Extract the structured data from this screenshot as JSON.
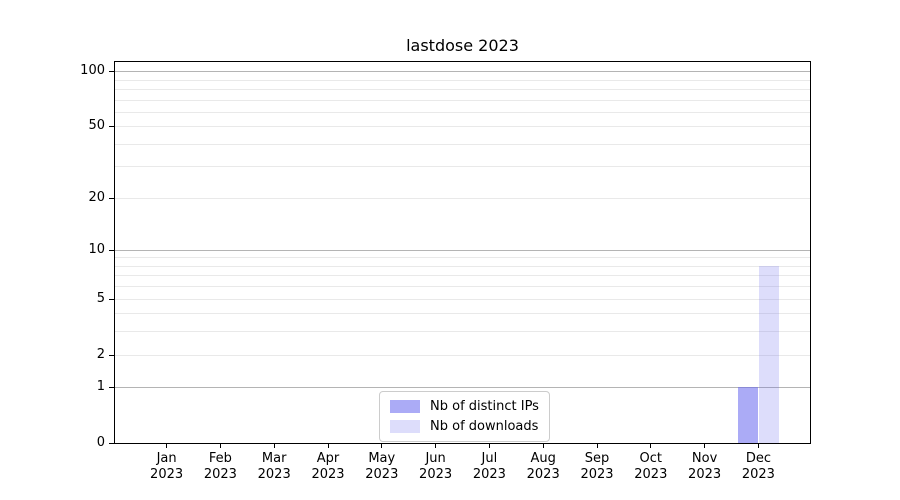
{
  "chart_data": {
    "type": "bar",
    "title": "lastdose 2023",
    "x_year": "2023",
    "x_categories": [
      "Jan",
      "Feb",
      "Mar",
      "Apr",
      "May",
      "Jun",
      "Jul",
      "Aug",
      "Sep",
      "Oct",
      "Nov",
      "Dec"
    ],
    "series": [
      {
        "name": "Nb of distinct IPs",
        "color": "rgba(102,102,238,0.55)",
        "values": [
          0,
          0,
          0,
          0,
          0,
          0,
          0,
          0,
          0,
          0,
          0,
          1
        ]
      },
      {
        "name": "Nb of downloads",
        "color": "rgba(102,102,238,0.22)",
        "values": [
          0,
          0,
          0,
          0,
          0,
          0,
          0,
          0,
          0,
          0,
          0,
          8
        ]
      }
    ],
    "y_scale": "log1p",
    "ylim": [
      0,
      112
    ],
    "y_ticks": [
      0,
      1,
      2,
      5,
      10,
      20,
      50,
      100
    ],
    "y_major_gridlines": [
      1,
      10,
      100
    ],
    "y_minor_gridlines": [
      2,
      3,
      4,
      5,
      6,
      7,
      8,
      9,
      20,
      30,
      40,
      50,
      60,
      70,
      80,
      90
    ],
    "grid": true,
    "legend_position": "lower center",
    "colors": {
      "minor_grid": "#e9e9e9",
      "major_grid": "#b4b4b4",
      "spine": "#000000",
      "text": "#000000"
    }
  }
}
